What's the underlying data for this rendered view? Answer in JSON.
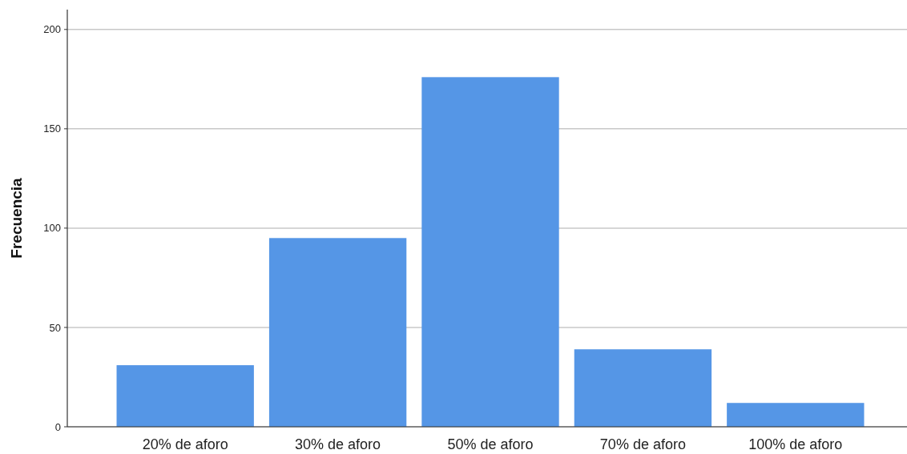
{
  "chart_data": {
    "type": "bar",
    "ylabel": "Frecuencia",
    "categories": [
      "20% de aforo",
      "30% de aforo",
      "50% de aforo",
      "70% de aforo",
      "100% de aforo"
    ],
    "values": [
      31,
      95,
      176,
      39,
      12
    ],
    "color": "#5596e6",
    "ylim": [
      0,
      210
    ],
    "yticks": [
      0,
      50,
      100,
      150,
      200
    ],
    "grid": "y"
  }
}
